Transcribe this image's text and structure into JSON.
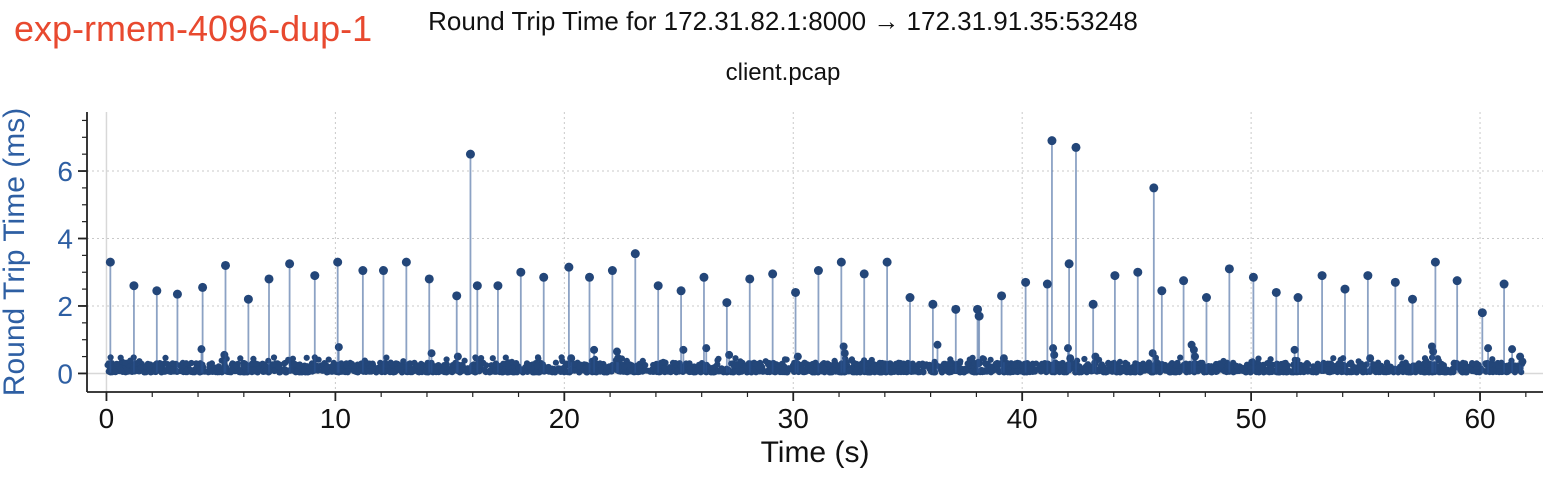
{
  "header": {
    "experiment_label": "exp-rmem-4096-dup-1"
  },
  "chart_data": {
    "type": "scatter",
    "subtype": "stem-plot with circle markers",
    "title": "Round Trip Time for 172.31.82.1:8000 → 172.31.91.35:53248",
    "subtitle": "client.pcap",
    "xlabel": "Time (s)",
    "ylabel": "Round Trip Time (ms)",
    "xlim": [
      -0.85,
      62.75
    ],
    "ylim": [
      -0.55,
      7.75
    ],
    "x_ticks": [
      0,
      10,
      20,
      30,
      40,
      50,
      60
    ],
    "x_minor_step": 2,
    "x_minor_max": 62,
    "y_ticks": [
      0,
      2,
      4,
      6
    ],
    "y_minor_step": 0.5,
    "y_minor_max": 7.5,
    "grid": "dotted gridlines at major ticks, solid light zerolines at x=0 and y=0",
    "legend_position": "none",
    "colors": {
      "marker": "#234679",
      "stem": "rgba(45,85,148,0.55)",
      "grid": "#c9c9c9",
      "zeroline": "#d8d8d8",
      "axis": "#222222",
      "x_tick_label": "#111111",
      "y_tick_label": "#2e5fa3",
      "ylabel": "#2e5fa3",
      "title": "#111111",
      "experiment_label": "#e8492f"
    },
    "spikes": [
      [
        0.17,
        3.3
      ],
      [
        1.2,
        2.6
      ],
      [
        2.2,
        2.45
      ],
      [
        3.1,
        2.35
      ],
      [
        4.2,
        2.55
      ],
      [
        5.2,
        3.2
      ],
      [
        6.2,
        2.2
      ],
      [
        7.1,
        2.8
      ],
      [
        8.0,
        3.25
      ],
      [
        9.1,
        2.9
      ],
      [
        10.1,
        3.3
      ],
      [
        11.2,
        3.05
      ],
      [
        12.1,
        3.05
      ],
      [
        13.1,
        3.3
      ],
      [
        14.1,
        2.8
      ],
      [
        15.3,
        2.3
      ],
      [
        15.9,
        6.5
      ],
      [
        16.2,
        2.6
      ],
      [
        17.1,
        2.6
      ],
      [
        18.1,
        3.0
      ],
      [
        19.1,
        2.85
      ],
      [
        20.2,
        3.15
      ],
      [
        21.1,
        2.85
      ],
      [
        22.1,
        3.05
      ],
      [
        23.1,
        3.55
      ],
      [
        24.1,
        2.6
      ],
      [
        25.1,
        2.45
      ],
      [
        26.1,
        2.85
      ],
      [
        27.1,
        2.1
      ],
      [
        28.1,
        2.8
      ],
      [
        29.1,
        2.95
      ],
      [
        30.1,
        2.4
      ],
      [
        31.1,
        3.05
      ],
      [
        32.1,
        3.3
      ],
      [
        33.1,
        2.95
      ],
      [
        34.1,
        3.3
      ],
      [
        35.1,
        2.25
      ],
      [
        36.1,
        2.05
      ],
      [
        37.1,
        1.9
      ],
      [
        38.05,
        1.9
      ],
      [
        38.12,
        1.7
      ],
      [
        39.1,
        2.3
      ],
      [
        40.15,
        2.7
      ],
      [
        41.1,
        2.65
      ],
      [
        41.3,
        6.9
      ],
      [
        42.05,
        3.25
      ],
      [
        42.35,
        6.7
      ],
      [
        43.1,
        2.05
      ],
      [
        44.05,
        2.9
      ],
      [
        45.05,
        3.0
      ],
      [
        45.75,
        5.5
      ],
      [
        46.1,
        2.45
      ],
      [
        47.05,
        2.75
      ],
      [
        48.05,
        2.25
      ],
      [
        49.05,
        3.1
      ],
      [
        50.1,
        2.85
      ],
      [
        51.1,
        2.4
      ],
      [
        52.05,
        2.25
      ],
      [
        53.1,
        2.9
      ],
      [
        54.1,
        2.5
      ],
      [
        55.1,
        2.9
      ],
      [
        56.3,
        2.7
      ],
      [
        57.05,
        2.2
      ],
      [
        58.05,
        3.3
      ],
      [
        59.0,
        2.75
      ],
      [
        60.1,
        1.8
      ],
      [
        61.05,
        2.65
      ]
    ],
    "mid_points": [
      [
        4.15,
        0.72
      ],
      [
        5.15,
        0.55
      ],
      [
        10.15,
        0.78
      ],
      [
        14.2,
        0.6
      ],
      [
        15.35,
        0.5
      ],
      [
        20.3,
        0.45
      ],
      [
        21.3,
        0.7
      ],
      [
        22.3,
        0.65
      ],
      [
        22.35,
        0.45
      ],
      [
        25.2,
        0.7
      ],
      [
        26.2,
        0.75
      ],
      [
        27.2,
        0.55
      ],
      [
        30.2,
        0.5
      ],
      [
        32.2,
        0.8
      ],
      [
        32.25,
        0.6
      ],
      [
        36.3,
        0.85
      ],
      [
        39.2,
        0.45
      ],
      [
        41.35,
        0.75
      ],
      [
        41.4,
        0.55
      ],
      [
        42.0,
        0.75
      ],
      [
        42.1,
        0.45
      ],
      [
        43.2,
        0.5
      ],
      [
        45.7,
        0.6
      ],
      [
        47.4,
        0.85
      ],
      [
        47.5,
        0.7
      ],
      [
        47.55,
        0.5
      ],
      [
        51.9,
        0.7
      ],
      [
        55.2,
        0.45
      ],
      [
        57.9,
        0.8
      ],
      [
        57.95,
        0.65
      ],
      [
        60.35,
        0.75
      ],
      [
        61.4,
        0.72
      ],
      [
        61.75,
        0.5
      ],
      [
        61.85,
        0.35
      ]
    ],
    "baseline_band": {
      "x_start": 0.0,
      "x_end": 61.85,
      "y_min": 0.03,
      "y_max": 0.32,
      "approx_point_count": 2600,
      "description": "dense band of RTT samples between ~0.03 and ~0.3 ms across the whole capture"
    }
  }
}
